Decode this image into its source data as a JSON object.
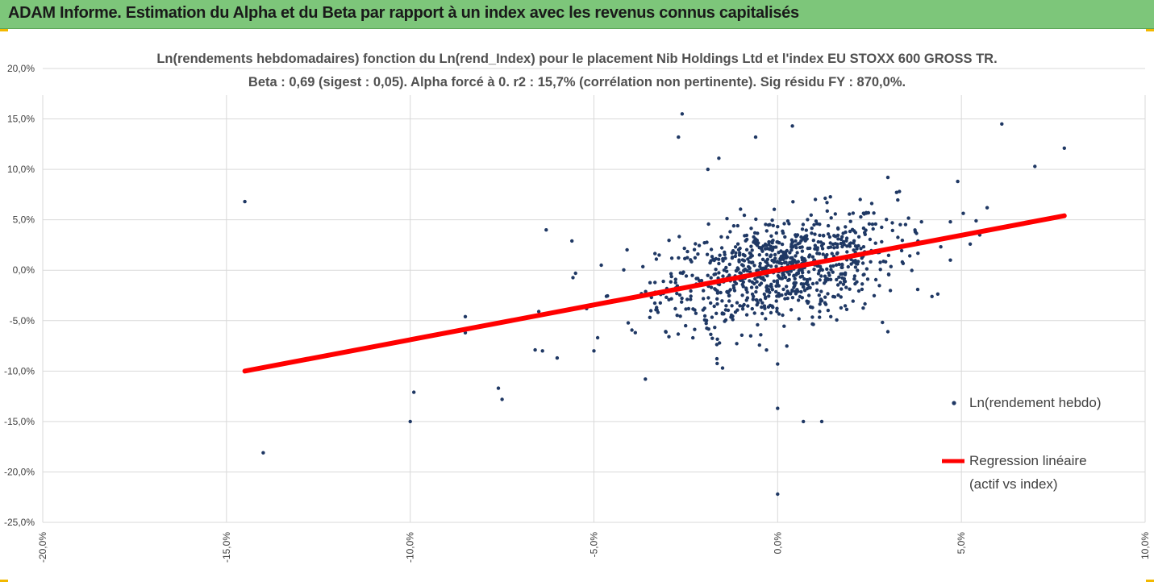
{
  "header": {
    "title": "ADAM Informe. Estimation du Alpha et du Beta par rapport à un index avec les revenus connus capitalisés"
  },
  "colors": {
    "banner": "#7dc67a",
    "accent_corner": "#f2b800",
    "points": "#1f3864",
    "regression": "#ff0000",
    "grid": "#d9d9d9"
  },
  "chart_data": {
    "type": "scatter",
    "title_line1": "Ln(rendements hebdomadaires) fonction du Ln(rend_Index) pour le placement Nib Holdings Ltd et l'index EU STOXX 600 GROSS TR.",
    "title_line2": "Beta : 0,69 (sigest : 0,05). Alpha forcé à 0. r2 : 15,7% (corrélation non pertinente). Sig résidu FY : 870,0%.",
    "xlim": [
      -0.2,
      0.1
    ],
    "ylim": [
      -0.25,
      0.2
    ],
    "x_ticks": [
      {
        "value": -0.2,
        "label": "-20,0%"
      },
      {
        "value": -0.15,
        "label": "-15,0%"
      },
      {
        "value": -0.1,
        "label": "-10,0%"
      },
      {
        "value": -0.05,
        "label": "-5,0%"
      },
      {
        "value": 0.0,
        "label": "0,0%"
      },
      {
        "value": 0.05,
        "label": "5,0%"
      },
      {
        "value": 0.1,
        "label": "10,0%"
      }
    ],
    "y_ticks": [
      {
        "value": 0.2,
        "label": "20,0%"
      },
      {
        "value": 0.15,
        "label": "15,0%"
      },
      {
        "value": 0.1,
        "label": "10,0%"
      },
      {
        "value": 0.05,
        "label": "5,0%"
      },
      {
        "value": 0.0,
        "label": "0,0%"
      },
      {
        "value": -0.05,
        "label": "-5,0%"
      },
      {
        "value": -0.1,
        "label": "-10,0%"
      },
      {
        "value": -0.15,
        "label": "-15,0%"
      },
      {
        "value": -0.2,
        "label": "-20,0%"
      },
      {
        "value": -0.25,
        "label": "-25,0%"
      }
    ],
    "grid": true,
    "legend_position": "right",
    "series": [
      {
        "name": "Ln(rendement hebdo)",
        "kind": "scatter",
        "color": "#1f3864",
        "outliers": [
          [
            -0.145,
            0.068
          ],
          [
            -0.14,
            -0.181
          ],
          [
            -0.1,
            -0.15
          ],
          [
            -0.099,
            -0.121
          ],
          [
            -0.085,
            -0.046
          ],
          [
            -0.085,
            -0.062
          ],
          [
            -0.076,
            -0.117
          ],
          [
            -0.075,
            -0.128
          ],
          [
            -0.065,
            -0.041
          ],
          [
            -0.064,
            -0.08
          ],
          [
            -0.066,
            -0.079
          ],
          [
            -0.063,
            0.04
          ],
          [
            -0.06,
            -0.087
          ],
          [
            -0.056,
            0.029
          ],
          [
            -0.055,
            -0.003
          ],
          [
            -0.052,
            -0.038
          ],
          [
            -0.05,
            -0.08
          ],
          [
            -0.049,
            -0.067
          ],
          [
            -0.048,
            0.005
          ],
          [
            -0.036,
            -0.108
          ],
          [
            -0.026,
            0.155
          ],
          [
            -0.027,
            0.132
          ],
          [
            -0.016,
            0.111
          ],
          [
            -0.019,
            0.1
          ],
          [
            -0.015,
            -0.097
          ],
          [
            -0.006,
            0.132
          ],
          [
            0.004,
            0.143
          ],
          [
            0.0,
            -0.093
          ],
          [
            0.0,
            -0.137
          ],
          [
            0.0,
            -0.222
          ],
          [
            0.007,
            -0.15
          ],
          [
            0.012,
            -0.15
          ],
          [
            0.03,
            -0.061
          ],
          [
            0.03,
            0.092
          ],
          [
            0.049,
            0.088
          ],
          [
            0.057,
            0.062
          ],
          [
            0.054,
            0.049
          ],
          [
            0.061,
            0.145
          ],
          [
            0.07,
            0.103
          ],
          [
            0.078,
            0.121
          ],
          [
            0.047,
            0.01
          ],
          [
            0.042,
            -0.026
          ],
          [
            0.055,
            0.035
          ],
          [
            0.047,
            0.048
          ]
        ],
        "cluster": {
          "count": 900,
          "x_center": 0.0,
          "x_sd": 0.016,
          "y_residual_sd": 0.027
        }
      },
      {
        "name": "Regression linéaire\n(actif vs index)",
        "kind": "line",
        "color": "#ff0000",
        "points": [
          [
            -0.145,
            -0.1
          ],
          [
            0.078,
            0.054
          ]
        ]
      }
    ],
    "legend": {
      "scatter_label": "Ln(rendement hebdo)",
      "line_label_1": "Regression linéaire",
      "line_label_2": "(actif vs index)"
    }
  }
}
